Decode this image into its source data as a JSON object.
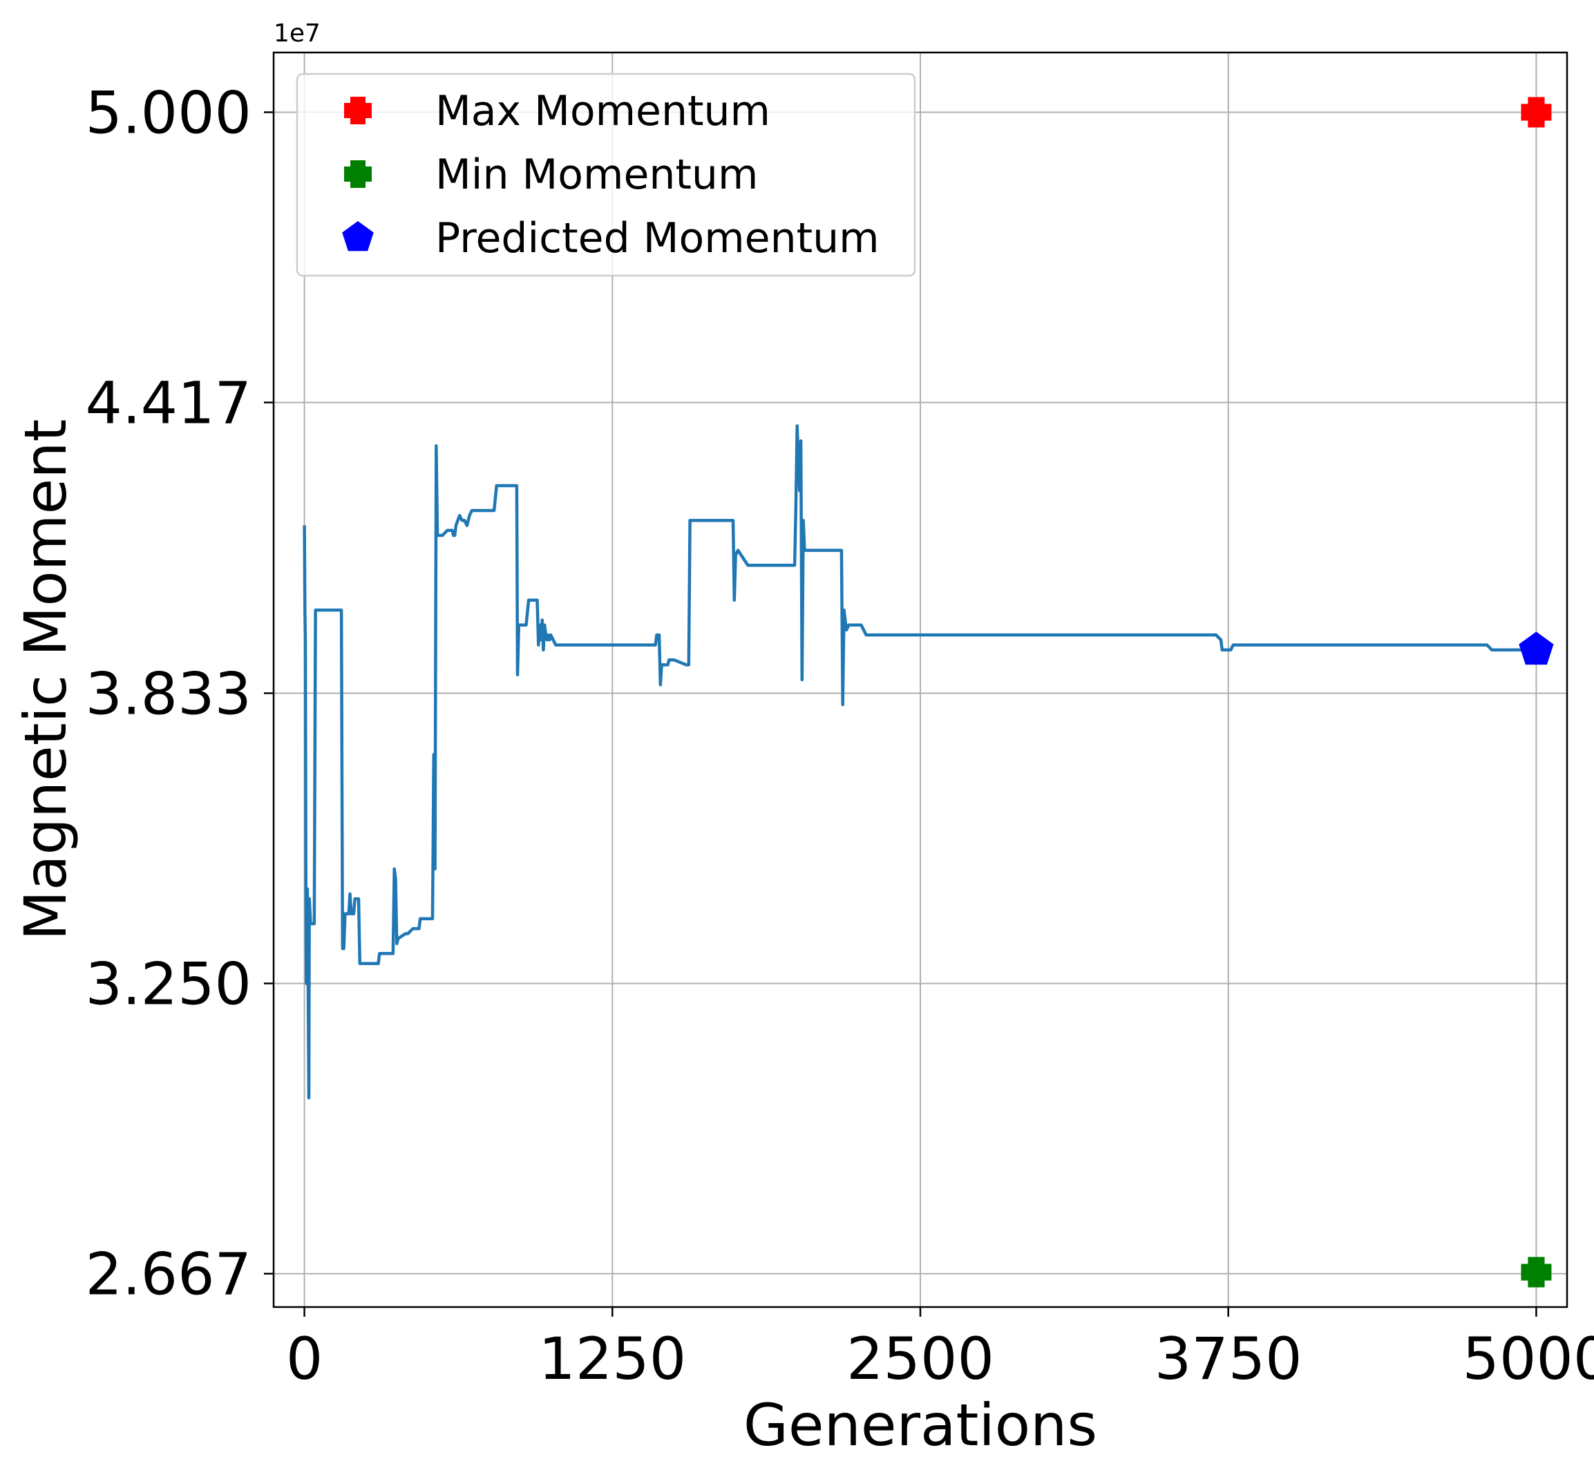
{
  "chart_data": {
    "type": "line",
    "xlabel": "Generations",
    "ylabel": "Magnetic Moment",
    "y_offset_label": "1e7",
    "xlim": [
      -125,
      5125
    ],
    "ylim": [
      26.0,
      51.2
    ],
    "x_ticks": [
      0,
      1250,
      2500,
      3750,
      5000
    ],
    "x_tick_labels": [
      "0",
      "1250",
      "2500",
      "3750",
      "5000"
    ],
    "y_ticks": [
      26.67,
      32.5,
      38.33,
      44.17,
      50.0
    ],
    "y_tick_labels": [
      "2.667",
      "3.250",
      "3.833",
      "4.417",
      "5.000"
    ],
    "y_unit_note": "y values in units of 1e6 (axis shows 1e7)",
    "grid": true,
    "legend_position": "upper-left",
    "series": [
      {
        "color": "#1f77b4",
        "marker": "line",
        "points": [
          [
            0,
            41.7
          ],
          [
            2,
            40.0
          ],
          [
            4,
            39.3
          ],
          [
            6,
            34.5
          ],
          [
            8,
            32.5
          ],
          [
            12,
            34.4
          ],
          [
            15,
            32.6
          ],
          [
            18,
            30.2
          ],
          [
            20,
            34.2
          ],
          [
            25,
            33.7
          ],
          [
            40,
            33.7
          ],
          [
            45,
            40.0
          ],
          [
            150,
            40.0
          ],
          [
            155,
            33.2
          ],
          [
            160,
            33.2
          ],
          [
            165,
            33.9
          ],
          [
            180,
            33.9
          ],
          [
            185,
            34.3
          ],
          [
            190,
            33.9
          ],
          [
            200,
            33.9
          ],
          [
            205,
            34.2
          ],
          [
            220,
            34.2
          ],
          [
            225,
            32.9
          ],
          [
            300,
            32.9
          ],
          [
            305,
            33.1
          ],
          [
            360,
            33.1
          ],
          [
            365,
            34.8
          ],
          [
            370,
            34.6
          ],
          [
            375,
            33.3
          ],
          [
            380,
            33.4
          ],
          [
            410,
            33.5
          ],
          [
            420,
            33.5
          ],
          [
            440,
            33.6
          ],
          [
            465,
            33.6
          ],
          [
            470,
            33.8
          ],
          [
            480,
            33.8
          ],
          [
            520,
            33.8
          ],
          [
            525,
            37.1
          ],
          [
            530,
            34.8
          ],
          [
            535,
            43.3
          ],
          [
            540,
            41.5
          ],
          [
            560,
            41.5
          ],
          [
            580,
            41.6
          ],
          [
            600,
            41.6
          ],
          [
            605,
            41.5
          ],
          [
            610,
            41.5
          ],
          [
            615,
            41.7
          ],
          [
            630,
            41.9
          ],
          [
            640,
            41.8
          ],
          [
            650,
            41.8
          ],
          [
            660,
            41.7
          ],
          [
            670,
            41.9
          ],
          [
            680,
            42.0
          ],
          [
            700,
            42.0
          ],
          [
            750,
            42.0
          ],
          [
            770,
            42.0
          ],
          [
            780,
            42.5
          ],
          [
            800,
            42.5
          ],
          [
            840,
            42.5
          ],
          [
            862,
            42.5
          ],
          [
            865,
            38.7
          ],
          [
            870,
            39.7
          ],
          [
            900,
            39.7
          ],
          [
            910,
            40.2
          ],
          [
            945,
            40.2
          ],
          [
            950,
            39.3
          ],
          [
            955,
            39.7
          ],
          [
            960,
            39.4
          ],
          [
            965,
            39.8
          ],
          [
            970,
            39.2
          ],
          [
            975,
            39.7
          ],
          [
            980,
            39.5
          ],
          [
            985,
            39.4
          ],
          [
            990,
            39.5
          ],
          [
            995,
            39.4
          ],
          [
            1000,
            39.5
          ],
          [
            1020,
            39.3
          ],
          [
            1050,
            39.3
          ],
          [
            1100,
            39.3
          ],
          [
            1200,
            39.3
          ],
          [
            1300,
            39.3
          ],
          [
            1400,
            39.3
          ],
          [
            1425,
            39.3
          ],
          [
            1430,
            39.5
          ],
          [
            1440,
            39.5
          ],
          [
            1445,
            38.5
          ],
          [
            1450,
            38.9
          ],
          [
            1475,
            38.9
          ],
          [
            1480,
            39.0
          ],
          [
            1500,
            39.0
          ],
          [
            1550,
            38.9
          ],
          [
            1560,
            38.9
          ],
          [
            1565,
            41.8
          ],
          [
            1600,
            41.8
          ],
          [
            1700,
            41.8
          ],
          [
            1740,
            41.8
          ],
          [
            1745,
            40.2
          ],
          [
            1750,
            41.1
          ],
          [
            1760,
            41.2
          ],
          [
            1800,
            40.9
          ],
          [
            1900,
            40.9
          ],
          [
            1990,
            40.9
          ],
          [
            1995,
            42.1
          ],
          [
            2000,
            43.7
          ],
          [
            2005,
            43.0
          ],
          [
            2010,
            42.4
          ],
          [
            2015,
            43.4
          ],
          [
            2020,
            38.6
          ],
          [
            2025,
            41.8
          ],
          [
            2030,
            41.2
          ],
          [
            2100,
            41.2
          ],
          [
            2180,
            41.2
          ],
          [
            2185,
            38.1
          ],
          [
            2190,
            40.0
          ],
          [
            2200,
            39.6
          ],
          [
            2210,
            39.7
          ],
          [
            2260,
            39.7
          ],
          [
            2280,
            39.5
          ],
          [
            2300,
            39.5
          ],
          [
            2400,
            39.5
          ],
          [
            2600,
            39.5
          ],
          [
            2800,
            39.5
          ],
          [
            3000,
            39.5
          ],
          [
            3200,
            39.5
          ],
          [
            3400,
            39.5
          ],
          [
            3600,
            39.5
          ],
          [
            3700,
            39.5
          ],
          [
            3720,
            39.4
          ],
          [
            3725,
            39.2
          ],
          [
            3760,
            39.2
          ],
          [
            3770,
            39.3
          ],
          [
            3800,
            39.3
          ],
          [
            3900,
            39.3
          ],
          [
            4000,
            39.3
          ],
          [
            4200,
            39.3
          ],
          [
            4400,
            39.3
          ],
          [
            4600,
            39.3
          ],
          [
            4800,
            39.3
          ],
          [
            4820,
            39.2
          ],
          [
            4900,
            39.2
          ],
          [
            5000,
            39.2
          ]
        ]
      },
      {
        "name": "Max Momentum",
        "color": "#ff0000",
        "marker": "plus-filled",
        "points": [
          [
            5000,
            50.0
          ]
        ]
      },
      {
        "name": "Min Momentum",
        "color": "#008000",
        "marker": "plus-filled",
        "points": [
          [
            5000,
            26.7
          ]
        ]
      },
      {
        "name": "Predicted Momentum",
        "color": "#0000ff",
        "marker": "pentagon",
        "points": [
          [
            5000,
            39.2
          ]
        ]
      }
    ]
  }
}
